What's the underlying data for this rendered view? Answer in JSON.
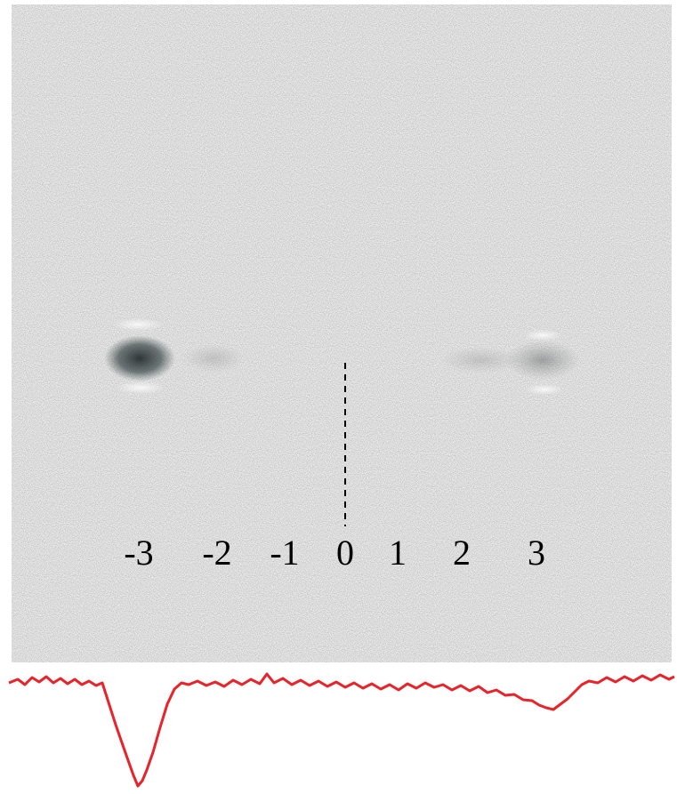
{
  "labels": [
    "-3",
    "-2",
    "-1",
    "0",
    "1",
    "2",
    "3"
  ]
}
